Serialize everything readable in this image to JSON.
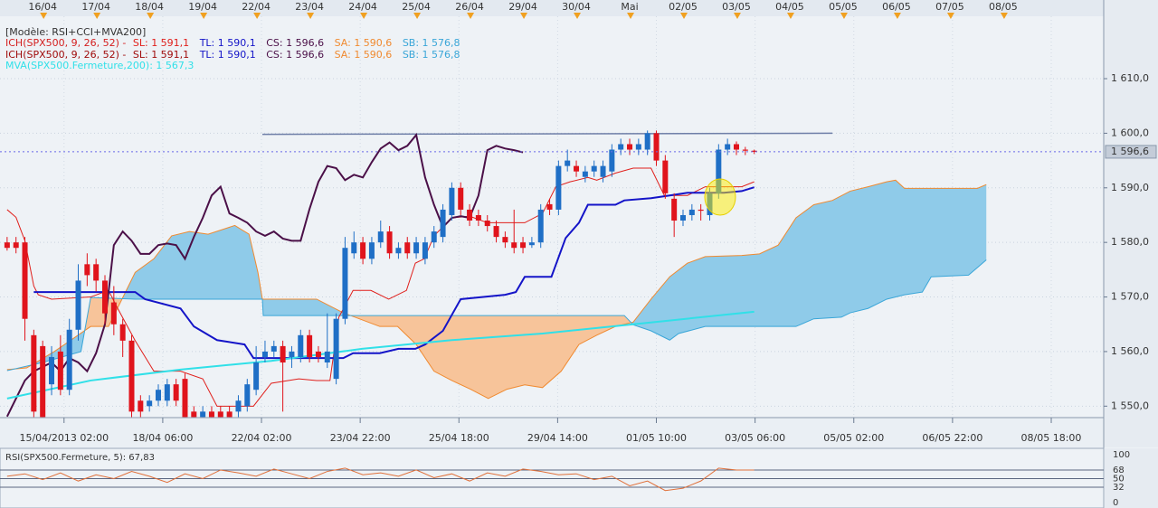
{
  "chart_data": {
    "type": "candlestick",
    "template_label": "[Modèle: RSI+CCI+MVA200]",
    "indicator_label": "ICH(SPX500, 9, 26, 52) -",
    "xlim": [
      -0.8,
      123.3
    ],
    "ylim": [
      1547.9,
      1621.1
    ],
    "grid": true,
    "yticks": [
      {
        "value": 1550,
        "label": "1 550,0"
      },
      {
        "value": 1560,
        "label": "1 560,0"
      },
      {
        "value": 1570,
        "label": "1 570,0"
      },
      {
        "value": 1580,
        "label": "1 580,0"
      },
      {
        "value": 1590,
        "label": "1 590,0"
      },
      {
        "value": 1600,
        "label": "1 600,0"
      },
      {
        "value": 1610,
        "label": "1 610,0"
      }
    ],
    "date_ticks": [
      {
        "value": 4,
        "label": "16/04"
      },
      {
        "value": 10,
        "label": "17/04"
      },
      {
        "value": 16,
        "label": "18/04"
      },
      {
        "value": 22,
        "label": "19/04"
      },
      {
        "value": 28,
        "label": "22/04"
      },
      {
        "value": 34,
        "label": "23/04"
      },
      {
        "value": 40,
        "label": "24/04"
      },
      {
        "value": 46,
        "label": "25/04"
      },
      {
        "value": 52,
        "label": "26/04"
      },
      {
        "value": 58,
        "label": "29/04"
      },
      {
        "value": 64,
        "label": "30/04"
      },
      {
        "value": 70,
        "label": "Mai"
      },
      {
        "value": 76,
        "label": "02/05"
      },
      {
        "value": 82,
        "label": "03/05"
      },
      {
        "value": 88,
        "label": "04/05"
      },
      {
        "value": 94,
        "label": "05/05"
      },
      {
        "value": 100,
        "label": "06/05"
      },
      {
        "value": 106,
        "label": "07/05"
      },
      {
        "value": 112,
        "label": "08/05"
      }
    ],
    "xticks": [
      {
        "value": 6.4,
        "label": "15/04/2013 02:00"
      },
      {
        "value": 17.5,
        "label": "18/04 06:00"
      },
      {
        "value": 28.6,
        "label": "22/04 02:00"
      },
      {
        "value": 39.7,
        "label": "23/04 22:00"
      },
      {
        "value": 50.8,
        "label": "25/04 18:00"
      },
      {
        "value": 61.9,
        "label": "29/04 14:00"
      },
      {
        "value": 73,
        "label": "01/05 10:00"
      },
      {
        "value": 84.1,
        "label": "03/05 06:00"
      },
      {
        "value": 95.2,
        "label": "05/05 02:00"
      },
      {
        "value": 106.3,
        "label": "06/05 22:00"
      },
      {
        "value": 117.4,
        "label": "08/05 18:00"
      }
    ],
    "last_price": {
      "value": 1596.6,
      "label": "1 596,6"
    },
    "candles": {
      "up_color": "#1f6fc6",
      "down_color": "#e0141c",
      "x": [
        0,
        1,
        2,
        3,
        4,
        5,
        6,
        7,
        8,
        9,
        10,
        11,
        12,
        13,
        14,
        15,
        16,
        17,
        18,
        19,
        20,
        21,
        22,
        23,
        24,
        25,
        26,
        27,
        28,
        29,
        30,
        31,
        32,
        33,
        34,
        35,
        36,
        37,
        38,
        39,
        40,
        41,
        42,
        43,
        44,
        45,
        46,
        47,
        48,
        49,
        50,
        51,
        52,
        53,
        54,
        55,
        56,
        57,
        58,
        59,
        60,
        61,
        62,
        63,
        64,
        65,
        66,
        67,
        68,
        69,
        70,
        71,
        72,
        73,
        74,
        75,
        76,
        77,
        78,
        79,
        80,
        81,
        82,
        83,
        84
      ],
      "open": [
        1580,
        1580,
        1580,
        1563,
        1561,
        1554,
        1560,
        1553,
        1564,
        1576,
        1576,
        1573,
        1569,
        1565,
        1562,
        1551,
        1550,
        1551,
        1551,
        1554,
        1555,
        1549,
        1548,
        1549,
        1549,
        1549,
        1549,
        1550,
        1553,
        1559,
        1560,
        1561,
        1559,
        1559,
        1563,
        1560,
        1558,
        1555,
        1566,
        1578,
        1580,
        1577,
        1580,
        1582,
        1578,
        1580,
        1578,
        1577,
        1580,
        1581,
        1585,
        1590,
        1586,
        1585,
        1584,
        1583,
        1581,
        1580,
        1580,
        1579.5,
        1580,
        1587,
        1586,
        1594,
        1594,
        1592,
        1593,
        1592,
        1593,
        1597,
        1598,
        1597,
        1597,
        1600,
        1595,
        1588,
        1584,
        1585,
        1586,
        1585,
        1589,
        1597,
        1598,
        1597,
        1596.8
      ],
      "high": [
        1581,
        1581,
        1581,
        1564,
        1562,
        1561,
        1563,
        1566,
        1576,
        1578,
        1577,
        1574,
        1572,
        1566,
        1563,
        1552,
        1552,
        1554,
        1555,
        1555,
        1556,
        1550,
        1550,
        1550,
        1550,
        1550,
        1552,
        1555,
        1561,
        1562,
        1562,
        1562,
        1561,
        1564,
        1564,
        1561,
        1567,
        1567,
        1581,
        1582,
        1581,
        1581,
        1584,
        1583,
        1580,
        1581,
        1581,
        1581,
        1583,
        1587,
        1591,
        1591,
        1587,
        1586,
        1585,
        1584,
        1582,
        1586,
        1581,
        1581,
        1587,
        1588,
        1595,
        1597,
        1595,
        1594,
        1595,
        1595,
        1598,
        1599,
        1599,
        1599,
        1600.5,
        1600.5,
        1596,
        1589,
        1586,
        1587,
        1587,
        1590,
        1598,
        1599,
        1598.5,
        1597.5,
        1597
      ],
      "low": [
        1578.5,
        1578,
        1562,
        1548,
        1548,
        1552,
        1552,
        1552,
        1562,
        1572,
        1571,
        1565,
        1563,
        1559,
        1548,
        1548,
        1549,
        1550,
        1550,
        1550,
        1548,
        1548,
        1548,
        1548,
        1548,
        1548,
        1548,
        1549,
        1552,
        1558,
        1559,
        1549,
        1557,
        1558,
        1558,
        1558,
        1557,
        1554,
        1565,
        1577,
        1576,
        1576,
        1579,
        1577,
        1577,
        1577,
        1577,
        1576,
        1579,
        1580,
        1584,
        1585,
        1583,
        1583,
        1582,
        1580,
        1579,
        1578,
        1578,
        1579,
        1579,
        1585,
        1585,
        1593,
        1592,
        1591,
        1592,
        1591,
        1592,
        1596,
        1596,
        1596,
        1596,
        1594,
        1588,
        1581,
        1583,
        1584,
        1584,
        1584,
        1588,
        1596,
        1596,
        1596,
        1596.2
      ],
      "close": [
        1579,
        1579,
        1566,
        1549,
        1548,
        1559,
        1553,
        1564,
        1573,
        1574,
        1573,
        1567,
        1565,
        1562,
        1549,
        1549,
        1551,
        1553,
        1554,
        1551,
        1548,
        1548,
        1549,
        1548,
        1548,
        1548,
        1551,
        1554,
        1558,
        1560,
        1561,
        1558,
        1560,
        1563,
        1559,
        1559,
        1560,
        1566,
        1579,
        1580,
        1577,
        1580,
        1582,
        1578,
        1579,
        1578,
        1580,
        1580,
        1582,
        1586,
        1590,
        1586,
        1584,
        1584,
        1583,
        1581,
        1580,
        1579,
        1579,
        1580,
        1586,
        1586,
        1594,
        1595,
        1593,
        1593,
        1594,
        1594,
        1597,
        1598,
        1597,
        1598,
        1600,
        1595,
        1589,
        1584,
        1585,
        1586,
        1585.8,
        1589,
        1597,
        1598,
        1597,
        1596.8,
        1596.6
      ]
    },
    "series": [
      {
        "name": "SL: 1 591,1",
        "color": "#e0201c",
        "x": [
          0,
          1,
          2,
          3,
          3.5,
          5,
          9.4,
          11.4,
          12.4,
          14.4,
          16.5,
          19.5,
          22,
          23.6,
          27.7,
          29.7,
          32.8,
          34.8,
          36.3,
          37.3,
          38.9,
          40.9,
          42.9,
          44.9,
          45.9,
          46.9,
          48,
          50,
          52,
          54,
          56,
          58.2,
          60.2,
          61.7,
          63.3,
          65.3,
          66.3,
          68.4,
          70.4,
          72.4,
          73.9,
          74.9,
          76.5,
          78.5,
          80.6,
          82.6,
          84
        ],
        "values": [
          1586,
          1584.6,
          1580.3,
          1572,
          1570.4,
          1569.6,
          1570,
          1571.2,
          1568,
          1562,
          1556.4,
          1556.4,
          1555,
          1550,
          1550,
          1554.2,
          1555,
          1554.7,
          1554.7,
          1566.3,
          1571.2,
          1571.2,
          1569.6,
          1571.2,
          1576.2,
          1577,
          1581.2,
          1584.5,
          1584.8,
          1583.6,
          1583.6,
          1583.6,
          1585.3,
          1590.2,
          1591.1,
          1591.9,
          1591.4,
          1592.7,
          1593.6,
          1593.6,
          1588.6,
          1588.6,
          1588.6,
          1590.2,
          1590.2,
          1590.2,
          1591.1
        ]
      },
      {
        "name": "TL: 1 590,1",
        "color": "#1414c8",
        "x": [
          3,
          14.4,
          15.5,
          19.5,
          21,
          23.6,
          26.7,
          27.7,
          33.8,
          37.8,
          38.9,
          41.9,
          44,
          45.9,
          47,
          49,
          51,
          56,
          57.2,
          58.2,
          61.2,
          62.8,
          64.3,
          65.3,
          68.4,
          69.4,
          72.4,
          74.5,
          76.5,
          80.6,
          82.6,
          84
        ],
        "values": [
          1570.9,
          1570.9,
          1569.6,
          1567.9,
          1564.6,
          1562.1,
          1561.3,
          1558.8,
          1558.8,
          1558.8,
          1559.7,
          1559.7,
          1560.5,
          1560.5,
          1561.3,
          1563.8,
          1569.6,
          1570.4,
          1570.9,
          1573.7,
          1573.7,
          1580.8,
          1583.6,
          1586.9,
          1586.9,
          1587.7,
          1588.1,
          1588.6,
          1589.1,
          1589.1,
          1589.4,
          1590.1
        ]
      },
      {
        "name": "CS: 1 596,6",
        "color": "#4b1048",
        "x": [
          0,
          1,
          2,
          3,
          4,
          5,
          6,
          7,
          8,
          9,
          10,
          11,
          12,
          13,
          14,
          15,
          16,
          17,
          18,
          19,
          20,
          21,
          22,
          23,
          24,
          25,
          26,
          27,
          28,
          29,
          30,
          31,
          32,
          33,
          34,
          35,
          36,
          37,
          38,
          39,
          40,
          41,
          42,
          43,
          44,
          45,
          46,
          47,
          48,
          49,
          50,
          51,
          52,
          53,
          54,
          55,
          56,
          57,
          58
        ],
        "values": [
          1548.1,
          1551.4,
          1554.7,
          1556.4,
          1557.2,
          1558,
          1556.4,
          1558.8,
          1558,
          1556.4,
          1559.7,
          1565,
          1579.5,
          1582,
          1580.3,
          1577.9,
          1577.9,
          1579.5,
          1579.8,
          1579.5,
          1577,
          1581,
          1584.5,
          1588.6,
          1590.2,
          1585.3,
          1584.5,
          1583.6,
          1582,
          1581.2,
          1582,
          1580.7,
          1580.3,
          1580.3,
          1586.1,
          1591.1,
          1594,
          1593.6,
          1591.4,
          1592.4,
          1591.9,
          1594.7,
          1597.2,
          1598.3,
          1596.9,
          1597.7,
          1599.7,
          1591.9,
          1586.9,
          1582.8,
          1584.5,
          1584.8,
          1584.5,
          1588.6,
          1596.9,
          1597.7,
          1597.2,
          1596.9,
          1596.5
        ]
      },
      {
        "name": "MVA(SPX500.Fermeture,200): 1 567,3",
        "color": "#30e0e8",
        "x": [
          0,
          9.4,
          19.5,
          29.7,
          39.9,
          50,
          60.2,
          70.4,
          84
        ],
        "values": [
          1551.4,
          1554.7,
          1556.7,
          1558.3,
          1560.5,
          1562.1,
          1563.3,
          1565,
          1567.3
        ]
      }
    ],
    "cloud": {
      "up_color": "#8fcbe9",
      "down_color": "#f7c49a",
      "series": [
        {
          "name": "SA: 1 590,6",
          "color": "#f08a30",
          "x": [
            0,
            2.2,
            5.3,
            9.4,
            11.4,
            14.4,
            16.5,
            18.5,
            20.5,
            22.6,
            25.6,
            27.2,
            28.2,
            28.7,
            34.8,
            37.8,
            41.9,
            43.9,
            46,
            48,
            50,
            52.1,
            54.1,
            56.2,
            58.2,
            60.2,
            62.3,
            64.3,
            66.3,
            68.4,
            70.4,
            72.4,
            74.5,
            76.5,
            78.5,
            82.6,
            84.6,
            86.7,
            88.7,
            90.7,
            92.8,
            94.8,
            96.8,
            98.9,
            99.9,
            100.9,
            109.1,
            110.1
          ],
          "values": [
            1556.7,
            1557,
            1560,
            1564.6,
            1564.6,
            1574.5,
            1577,
            1581.2,
            1582,
            1581.5,
            1583.1,
            1581.5,
            1574.5,
            1569.6,
            1569.6,
            1567.1,
            1564.6,
            1564.6,
            1561.3,
            1556.4,
            1554.7,
            1553.1,
            1551.4,
            1553.1,
            1553.9,
            1553.4,
            1556.4,
            1561.3,
            1563,
            1564.6,
            1565.4,
            1569.6,
            1573.7,
            1576.2,
            1577.4,
            1577.6,
            1577.9,
            1579.5,
            1584.5,
            1586.9,
            1587.7,
            1589.4,
            1590.2,
            1591.1,
            1591.4,
            1589.9,
            1589.9,
            1590.6
          ]
        },
        {
          "name": "SB: 1 576,8",
          "color": "#3aa6d8",
          "x": [
            0,
            4,
            8.3,
            9.4,
            14.4,
            28.7,
            28.8,
            69.4,
            70.4,
            72.4,
            74.5,
            75.5,
            78.5,
            88.7,
            90.7,
            93.8,
            94.8,
            96.8,
            98.9,
            100.9,
            102.9,
            103.9,
            108.1,
            109.1,
            110.1
          ],
          "values": [
            1556.5,
            1558,
            1560,
            1569.9,
            1569.6,
            1569.6,
            1566.6,
            1566.6,
            1564.9,
            1563.8,
            1562.1,
            1563.3,
            1564.6,
            1564.6,
            1566,
            1566.3,
            1567.1,
            1567.9,
            1569.6,
            1570.4,
            1570.9,
            1573.7,
            1574,
            1575.4,
            1576.8
          ]
        }
      ]
    },
    "trend_line": {
      "color": "#6f7fa8",
      "x": [
        28.7,
        92.8
      ],
      "values": [
        1599.8,
        1600
      ]
    },
    "rsi": {
      "type": "line",
      "title": "RSI(SPX500.Fermeture, 5): 67,83",
      "color": "#e0703a",
      "ylim": [
        0,
        100
      ],
      "yticks": [
        100,
        68,
        50,
        32,
        0
      ],
      "x": [
        0,
        2,
        4,
        6,
        8,
        10,
        12,
        14,
        16,
        18,
        20,
        22,
        24,
        26,
        28,
        30,
        32,
        34,
        36,
        38,
        40,
        42,
        44,
        46,
        48,
        50,
        52,
        54,
        56,
        58,
        60,
        62,
        64,
        66,
        68,
        70,
        72,
        74,
        76,
        78,
        80,
        82,
        84
      ],
      "values": [
        55,
        60,
        48,
        62,
        45,
        58,
        50,
        65,
        55,
        42,
        60,
        50,
        68,
        62,
        55,
        70,
        60,
        50,
        65,
        72,
        58,
        62,
        55,
        68,
        52,
        60,
        45,
        62,
        55,
        70,
        65,
        58,
        60,
        48,
        55,
        35,
        45,
        25,
        30,
        45,
        72,
        68,
        67.83
      ]
    }
  }
}
